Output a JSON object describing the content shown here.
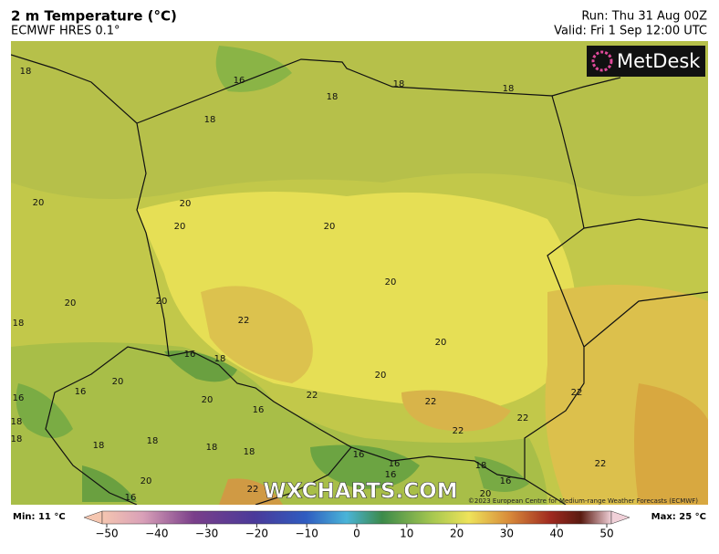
{
  "header": {
    "title": "2 m Temperature (°C)",
    "subtitle": "ECMWF HRES 0.1°",
    "run": "Run: Thu 31 Aug 00Z",
    "valid": "Valid: Fri 1 Sep 12:00 UTC"
  },
  "logo": "MetDesk",
  "map": {
    "contour_labels": [
      "18",
      "16",
      "18",
      "18",
      "18",
      "18",
      "20",
      "20",
      "20",
      "20",
      "20",
      "20",
      "20",
      "18",
      "22",
      "20",
      "16",
      "18",
      "20",
      "20",
      "16",
      "16",
      "20",
      "22",
      "22",
      "22",
      "18",
      "16",
      "22",
      "22",
      "18",
      "18",
      "18",
      "18",
      "18",
      "16",
      "16",
      "16",
      "18",
      "22",
      "20",
      "16",
      "16",
      "22",
      "20"
    ],
    "watermark": "WXCHARTS.COM",
    "copyright": "©2023 European Centre for Medium-range Weather Forecasts (ECMWF)"
  },
  "colorbar": {
    "min_label": "Min: 11 °C",
    "max_label": "Max: 25 °C",
    "ticks": [
      "−50",
      "−40",
      "−30",
      "−20",
      "−10",
      "0",
      "10",
      "20",
      "30",
      "40",
      "50"
    ]
  }
}
